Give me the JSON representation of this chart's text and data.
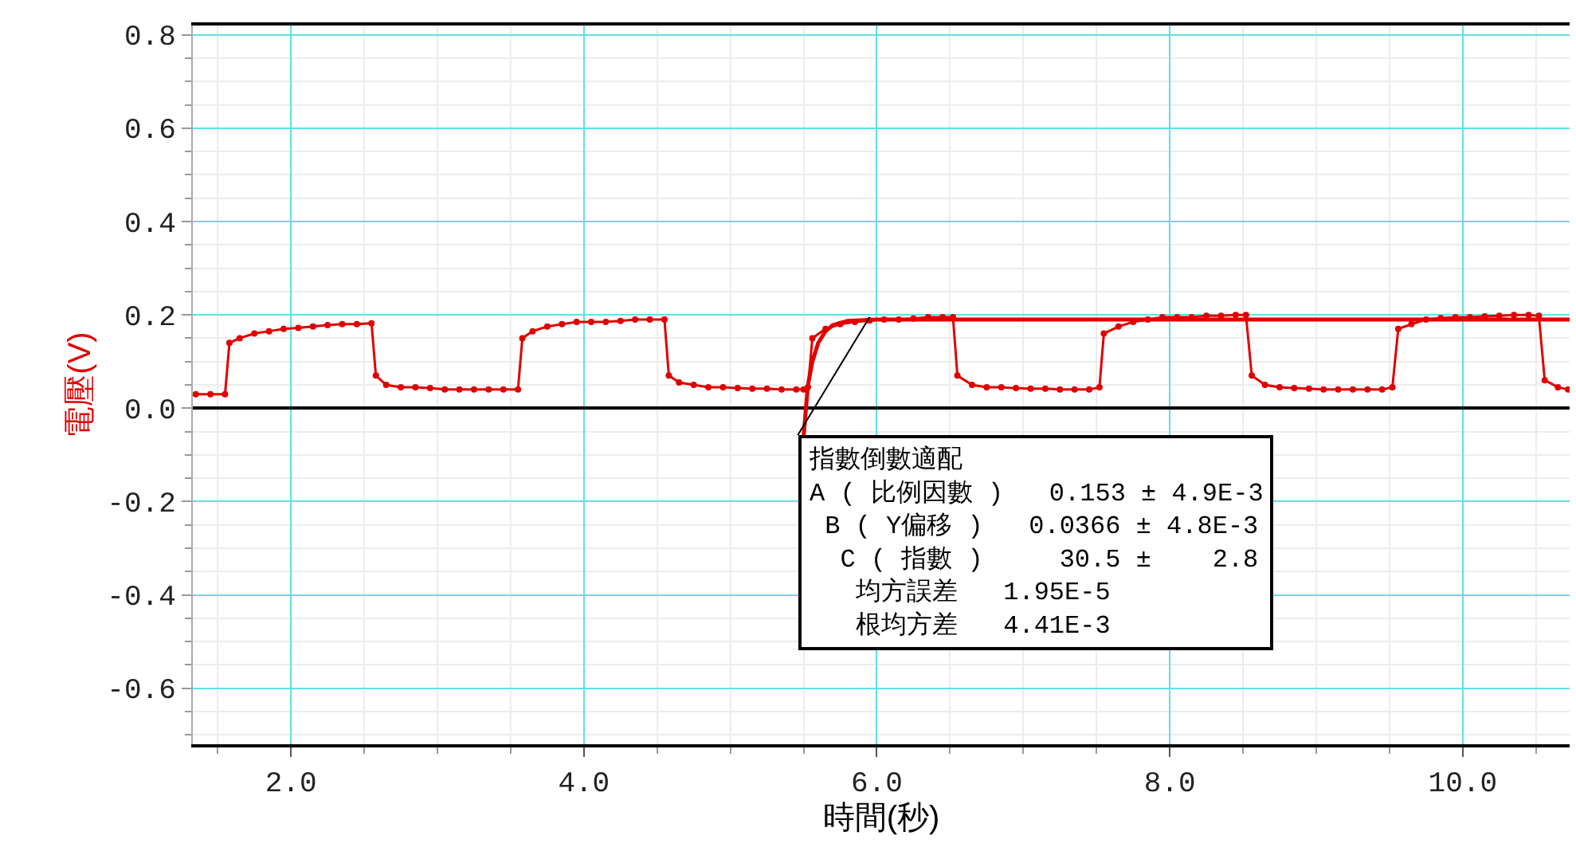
{
  "chart_data": {
    "type": "line",
    "xlabel": "時間(秒)",
    "ylabel": "電壓(V)",
    "xlim": [
      1.33,
      10.73
    ],
    "xticks": [
      {
        "value": 2,
        "label": "2.0"
      },
      {
        "value": 4,
        "label": "4.0"
      },
      {
        "value": 6,
        "label": "6.0"
      },
      {
        "value": 8,
        "label": "8.0"
      },
      {
        "value": 10,
        "label": "10.0"
      }
    ],
    "ylim": [
      -0.72,
      0.82
    ],
    "yticks": [
      {
        "value": -0.6,
        "label": "-0.6"
      },
      {
        "value": -0.4,
        "label": "-0.4"
      },
      {
        "value": -0.2,
        "label": "-0.2"
      },
      {
        "value": 0,
        "label": "0.0"
      },
      {
        "value": 0.2,
        "label": "0.2"
      },
      {
        "value": 0.4,
        "label": "0.4"
      },
      {
        "value": 0.6,
        "label": "0.6"
      },
      {
        "value": 0.8,
        "label": "0.8"
      }
    ],
    "grid": true,
    "series": [
      {
        "color": "#e00000",
        "marker": "circle",
        "x": [
          1.35,
          1.45,
          1.55,
          1.58,
          1.65,
          1.75,
          1.85,
          1.95,
          2.05,
          2.15,
          2.25,
          2.35,
          2.45,
          2.55,
          2.58,
          2.65,
          2.75,
          2.85,
          2.95,
          3.05,
          3.15,
          3.25,
          3.35,
          3.45,
          3.55,
          3.58,
          3.65,
          3.75,
          3.85,
          3.95,
          4.05,
          4.15,
          4.25,
          4.35,
          4.45,
          4.55,
          4.58,
          4.65,
          4.75,
          4.85,
          4.95,
          5.05,
          5.15,
          5.25,
          5.35,
          5.45,
          5.5,
          5.53,
          5.56,
          5.65,
          5.75,
          5.85,
          5.95,
          6.05,
          6.15,
          6.25,
          6.35,
          6.45,
          6.52,
          6.55,
          6.65,
          6.75,
          6.85,
          6.95,
          7.05,
          7.15,
          7.25,
          7.35,
          7.45,
          7.52,
          7.55,
          7.65,
          7.75,
          7.85,
          7.95,
          8.05,
          8.15,
          8.25,
          8.35,
          8.45,
          8.52,
          8.56,
          8.65,
          8.75,
          8.85,
          8.95,
          9.05,
          9.15,
          9.25,
          9.35,
          9.45,
          9.52,
          9.56,
          9.65,
          9.75,
          9.85,
          9.95,
          10.05,
          10.15,
          10.25,
          10.35,
          10.45,
          10.52,
          10.56,
          10.65,
          10.72
        ],
        "values": [
          0.03,
          0.03,
          0.03,
          0.14,
          0.15,
          0.16,
          0.165,
          0.17,
          0.172,
          0.175,
          0.178,
          0.18,
          0.18,
          0.182,
          0.07,
          0.05,
          0.045,
          0.045,
          0.043,
          0.04,
          0.04,
          0.04,
          0.04,
          0.04,
          0.04,
          0.15,
          0.165,
          0.175,
          0.18,
          0.185,
          0.185,
          0.185,
          0.187,
          0.19,
          0.19,
          0.19,
          0.07,
          0.055,
          0.05,
          0.045,
          0.045,
          0.043,
          0.042,
          0.042,
          0.04,
          0.04,
          0.04,
          0.045,
          0.15,
          0.17,
          0.18,
          0.185,
          0.188,
          0.19,
          0.19,
          0.192,
          0.195,
          0.195,
          0.195,
          0.07,
          0.05,
          0.045,
          0.045,
          0.043,
          0.042,
          0.042,
          0.04,
          0.04,
          0.04,
          0.045,
          0.16,
          0.175,
          0.185,
          0.19,
          0.195,
          0.195,
          0.195,
          0.198,
          0.198,
          0.2,
          0.2,
          0.07,
          0.05,
          0.045,
          0.043,
          0.042,
          0.04,
          0.04,
          0.04,
          0.04,
          0.04,
          0.045,
          0.17,
          0.18,
          0.19,
          0.193,
          0.195,
          0.195,
          0.197,
          0.198,
          0.2,
          0.2,
          0.198,
          0.06,
          0.045,
          0.04
        ]
      },
      {
        "color": "#e00000",
        "marker": "none",
        "x": [
          5.5,
          5.53,
          5.56,
          5.6,
          5.65,
          5.7,
          5.8,
          6.0,
          10.73
        ],
        "values": [
          -0.06,
          0.05,
          0.1,
          0.14,
          0.165,
          0.178,
          0.187,
          0.19,
          0.19
        ]
      }
    ],
    "annotations": [
      {
        "text": "指數倒數適配\nA ( 比例因數 )   0.153 ± 4.9E-3\n B ( Y偏移 )   0.0366 ± 4.8E-3\n  C ( 指數 )     30.5 ±    2.8\n   均方誤差   1.95E-5\n   根均方差   4.41E-3",
        "x": 5.95,
        "y": 0.195
      }
    ]
  }
}
